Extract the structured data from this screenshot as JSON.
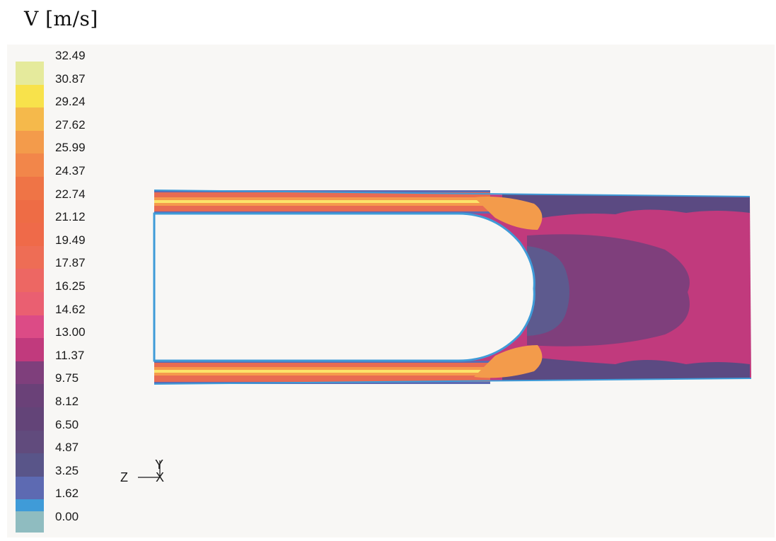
{
  "title": "V [m/s]",
  "legend": {
    "ticks": [
      "32.49",
      "30.87",
      "29.24",
      "27.62",
      "25.99",
      "24.37",
      "22.74",
      "21.12",
      "19.49",
      "17.87",
      "16.25",
      "14.62",
      "13.00",
      "11.37",
      "9.75",
      "8.12",
      "6.50",
      "4.87",
      "3.25",
      "1.62",
      "0.00"
    ],
    "colors": [
      "#e5ea9c",
      "#f8e24b",
      "#f5b94b",
      "#f39b4b",
      "#f2864a",
      "#ef7446",
      "#ee6c45",
      "#ef6a49",
      "#ee6d55",
      "#ed6763",
      "#ea5f71",
      "#dc4b86",
      "#c13a7d",
      "#7f3f7c",
      "#6a4178",
      "#634478",
      "#614b7d",
      "#595589",
      "#5d6ab2",
      "#3f9bd8",
      "#8fbcc0"
    ]
  },
  "axes": {
    "y_label": "Y",
    "z_label": "Z",
    "x_label": "X"
  },
  "colors": {
    "background": "#f8f7f5",
    "jet_core": "#fbe36a",
    "jet_orange": "#ef7446",
    "wall_blue": "#3f9bd8",
    "mid_purple": "#7f3f7c",
    "bulk_magenta": "#c13a7d"
  }
}
